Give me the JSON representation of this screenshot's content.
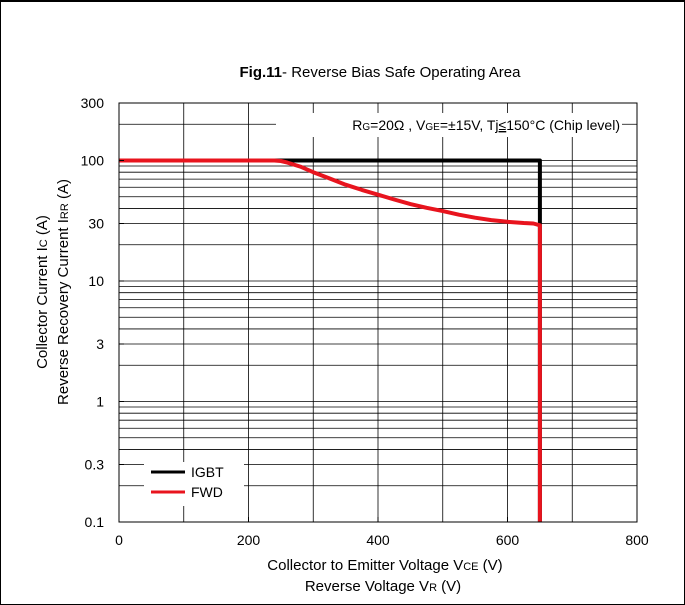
{
  "chart_data": {
    "type": "line",
    "title_bold": "Fig.11",
    "title_rest": "- Reverse Bias Safe Operating Area",
    "xlabel_line1": "Collector to Emitter Voltage  V",
    "xlabel_line1_sub": "CE",
    "xlabel_line1_unit": "  (V)",
    "xlabel_line2": "Reverse Voltage  V",
    "xlabel_line2_sub": "R",
    "xlabel_line2_unit": "  (V)",
    "ylabel_line1": "Collector Current  I",
    "ylabel_line1_sub": "C",
    "ylabel_line1_unit": " (A)",
    "ylabel_line2": "Reverse Recovery Current I",
    "ylabel_line2_sub": "RR",
    "ylabel_line2_unit": " (A)",
    "annotation": {
      "r_main": "R",
      "r_sub": "G",
      "r_val": "=20Ω , V",
      "v_sub": "GE",
      "v_val": "=±15V, Tj",
      "le": "≤",
      "tail": "150°C (Chip level)"
    },
    "xlim": [
      0,
      800
    ],
    "x_ticks": [
      0,
      200,
      400,
      600,
      800
    ],
    "x_tick_labels": [
      "0",
      "200",
      "400",
      "600",
      "800"
    ],
    "ylim": [
      0.1,
      300
    ],
    "y_scale": "log",
    "y_ticks": [
      0.1,
      0.3,
      1,
      3,
      10,
      30,
      100,
      300
    ],
    "y_tick_labels": [
      "0.1",
      "0.3",
      "1",
      "3",
      "10",
      "30",
      "100",
      "300"
    ],
    "grid": true,
    "legend_position": "bottom-left",
    "series": [
      {
        "name": "IGBT",
        "color": "#000000",
        "x": [
          0,
          650,
          650
        ],
        "y": [
          100,
          100,
          0.1
        ]
      },
      {
        "name": "FWD",
        "color": "#e8141e",
        "x": [
          0,
          240,
          250,
          260,
          280,
          300,
          325,
          350,
          375,
          400,
          425,
          450,
          475,
          500,
          525,
          550,
          575,
          600,
          625,
          640,
          650,
          650
        ],
        "y": [
          100,
          100,
          99,
          96,
          89,
          80,
          71,
          63,
          57,
          52,
          47.5,
          43.5,
          40.5,
          38,
          35.5,
          33.5,
          32,
          31,
          30.3,
          30,
          29,
          0.1
        ]
      }
    ]
  }
}
